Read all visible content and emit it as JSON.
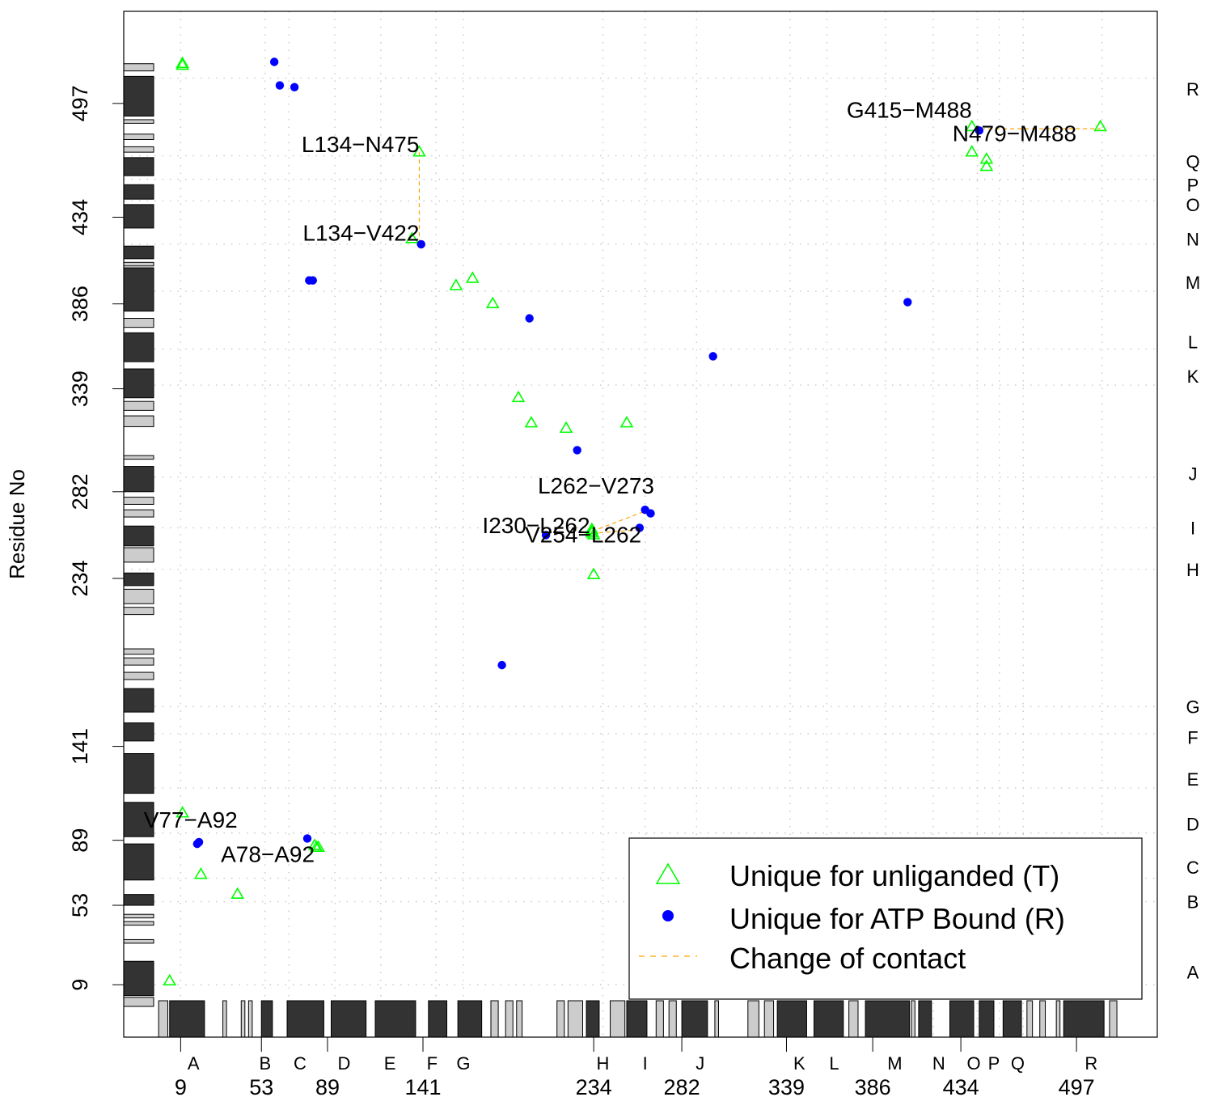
{
  "chart_data": {
    "type": "scatter",
    "title": "",
    "xlabel": "",
    "ylabel": "Residue No",
    "xlim": [
      -22,
      541
    ],
    "ylim": [
      -20,
      548
    ],
    "xticks": [
      9,
      53,
      89,
      141,
      234,
      282,
      339,
      386,
      434,
      497
    ],
    "yticks": [
      9,
      53,
      89,
      141,
      234,
      282,
      339,
      386,
      434,
      497
    ],
    "helix_lines": [
      9,
      55,
      68,
      93,
      118,
      148,
      163,
      239,
      262,
      290,
      341,
      361,
      393,
      419,
      443,
      455,
      468,
      511
    ],
    "helices": [
      {
        "name": "A",
        "pos": 16
      },
      {
        "name": "B",
        "pos": 55
      },
      {
        "name": "C",
        "pos": 74
      },
      {
        "name": "D",
        "pos": 98
      },
      {
        "name": "E",
        "pos": 123
      },
      {
        "name": "F",
        "pos": 146
      },
      {
        "name": "G",
        "pos": 163
      },
      {
        "name": "H",
        "pos": 239
      },
      {
        "name": "I",
        "pos": 262
      },
      {
        "name": "J",
        "pos": 292
      },
      {
        "name": "K",
        "pos": 346
      },
      {
        "name": "L",
        "pos": 365
      },
      {
        "name": "M",
        "pos": 398
      },
      {
        "name": "N",
        "pos": 422
      },
      {
        "name": "O",
        "pos": 441
      },
      {
        "name": "P",
        "pos": 452
      },
      {
        "name": "Q",
        "pos": 465
      },
      {
        "name": "R",
        "pos": 505
      }
    ],
    "secondary_structure": [
      {
        "start": -3,
        "end": 2,
        "type": "strand"
      },
      {
        "start": 3,
        "end": 22,
        "type": "helix"
      },
      {
        "start": 32,
        "end": 34,
        "type": "strand"
      },
      {
        "start": 42,
        "end": 44,
        "type": "strand"
      },
      {
        "start": 46,
        "end": 48,
        "type": "strand"
      },
      {
        "start": 53,
        "end": 59,
        "type": "helix"
      },
      {
        "start": 67,
        "end": 87,
        "type": "helix"
      },
      {
        "start": 91,
        "end": 110,
        "type": "helix"
      },
      {
        "start": 115,
        "end": 137,
        "type": "helix"
      },
      {
        "start": 144,
        "end": 154,
        "type": "helix"
      },
      {
        "start": 160,
        "end": 173,
        "type": "helix"
      },
      {
        "start": 178,
        "end": 182,
        "type": "strand"
      },
      {
        "start": 186,
        "end": 190,
        "type": "strand"
      },
      {
        "start": 192,
        "end": 195,
        "type": "strand"
      },
      {
        "start": 214,
        "end": 218,
        "type": "strand"
      },
      {
        "start": 220,
        "end": 228,
        "type": "strand"
      },
      {
        "start": 230,
        "end": 237,
        "type": "helix"
      },
      {
        "start": 243,
        "end": 251,
        "type": "strand"
      },
      {
        "start": 252,
        "end": 263,
        "type": "helix"
      },
      {
        "start": 268,
        "end": 272,
        "type": "strand"
      },
      {
        "start": 275,
        "end": 279,
        "type": "strand"
      },
      {
        "start": 282,
        "end": 296,
        "type": "helix"
      },
      {
        "start": 300,
        "end": 302,
        "type": "strand"
      },
      {
        "start": 318,
        "end": 324,
        "type": "strand"
      },
      {
        "start": 327,
        "end": 332,
        "type": "strand"
      },
      {
        "start": 334,
        "end": 350,
        "type": "helix"
      },
      {
        "start": 354,
        "end": 370,
        "type": "helix"
      },
      {
        "start": 373,
        "end": 378,
        "type": "strand"
      },
      {
        "start": 382,
        "end": 406,
        "type": "helix"
      },
      {
        "start": 407,
        "end": 409,
        "type": "strand"
      },
      {
        "start": 411,
        "end": 418,
        "type": "helix"
      },
      {
        "start": 428,
        "end": 441,
        "type": "helix"
      },
      {
        "start": 444,
        "end": 452,
        "type": "helix"
      },
      {
        "start": 457,
        "end": 467,
        "type": "helix"
      },
      {
        "start": 470,
        "end": 473,
        "type": "strand"
      },
      {
        "start": 477,
        "end": 480,
        "type": "strand"
      },
      {
        "start": 486,
        "end": 488,
        "type": "strand"
      },
      {
        "start": 490,
        "end": 512,
        "type": "helix"
      },
      {
        "start": 515,
        "end": 519,
        "type": "strand"
      }
    ],
    "series": [
      {
        "name": "Unique for unliganded (T)",
        "marker": "triangle",
        "color": "#00ff00",
        "points": [
          [
            3,
            11
          ],
          [
            10,
            518
          ],
          [
            10,
            519
          ],
          [
            10,
            104
          ],
          [
            20,
            70
          ],
          [
            40,
            59
          ],
          [
            82,
            86
          ],
          [
            83,
            85
          ],
          [
            84,
            85
          ],
          [
            135,
            422
          ],
          [
            139,
            470
          ],
          [
            159,
            396
          ],
          [
            168,
            400
          ],
          [
            179,
            386
          ],
          [
            193,
            334
          ],
          [
            200,
            320
          ],
          [
            219,
            317
          ],
          [
            252,
            320
          ],
          [
            233,
            261
          ],
          [
            233,
            260
          ],
          [
            233,
            259
          ],
          [
            234,
            258
          ],
          [
            234,
            236
          ],
          [
            440,
            484
          ],
          [
            440,
            470
          ],
          [
            448,
            466
          ],
          [
            448,
            462
          ],
          [
            510,
            484
          ]
        ]
      },
      {
        "name": "Unique for ATP Bound (R)",
        "marker": "circle",
        "color": "#0000ff",
        "points": [
          [
            60,
            520
          ],
          [
            63,
            507
          ],
          [
            71,
            506
          ],
          [
            79,
            399
          ],
          [
            81,
            399
          ],
          [
            140,
            419
          ],
          [
            19,
            88
          ],
          [
            18,
            87
          ],
          [
            78,
            90
          ],
          [
            184,
            186
          ],
          [
            199,
            378
          ],
          [
            225,
            305
          ],
          [
            208,
            258
          ],
          [
            259,
            262
          ],
          [
            262,
            272
          ],
          [
            265,
            270
          ],
          [
            299,
            357
          ],
          [
            405,
            387
          ],
          [
            444,
            482
          ]
        ]
      }
    ],
    "change_of_contact": [
      {
        "from": [
          139,
          470
        ],
        "to": [
          139,
          421
        ]
      },
      {
        "from": [
          233,
          260
        ],
        "to": [
          264,
          272
        ]
      },
      {
        "from": [
          233,
          259
        ],
        "to": [
          260,
          261
        ]
      },
      {
        "from": [
          445,
          483
        ],
        "to": [
          510,
          483
        ]
      }
    ],
    "annotations": [
      {
        "text": "L134−N475",
        "x": 139,
        "y": 470
      },
      {
        "text": "L134−V422",
        "x": 139,
        "y": 421
      },
      {
        "text": "G415−M488",
        "x": 440,
        "y": 489
      },
      {
        "text": "N479−M488",
        "x": 497,
        "y": 476
      },
      {
        "text": "L262−V273",
        "x": 267,
        "y": 281
      },
      {
        "text": "I230−L262",
        "x": 232,
        "y": 259
      },
      {
        "text": "V254−L262",
        "x": 260,
        "y": 254
      },
      {
        "text": "V77−A92",
        "x": 40,
        "y": 96
      },
      {
        "text": "A78−A92",
        "x": 82,
        "y": 77
      }
    ],
    "legend": {
      "position": "bottom-right",
      "entries": [
        {
          "label": "Unique for unliganded (T)",
          "marker": "triangle",
          "color": "#00ff00"
        },
        {
          "label": "Unique for ATP Bound (R)",
          "marker": "circle",
          "color": "#0000ff"
        },
        {
          "label": "Change of contact",
          "marker": "dashed-line",
          "color": "#ffa500"
        }
      ]
    },
    "grid": true
  }
}
